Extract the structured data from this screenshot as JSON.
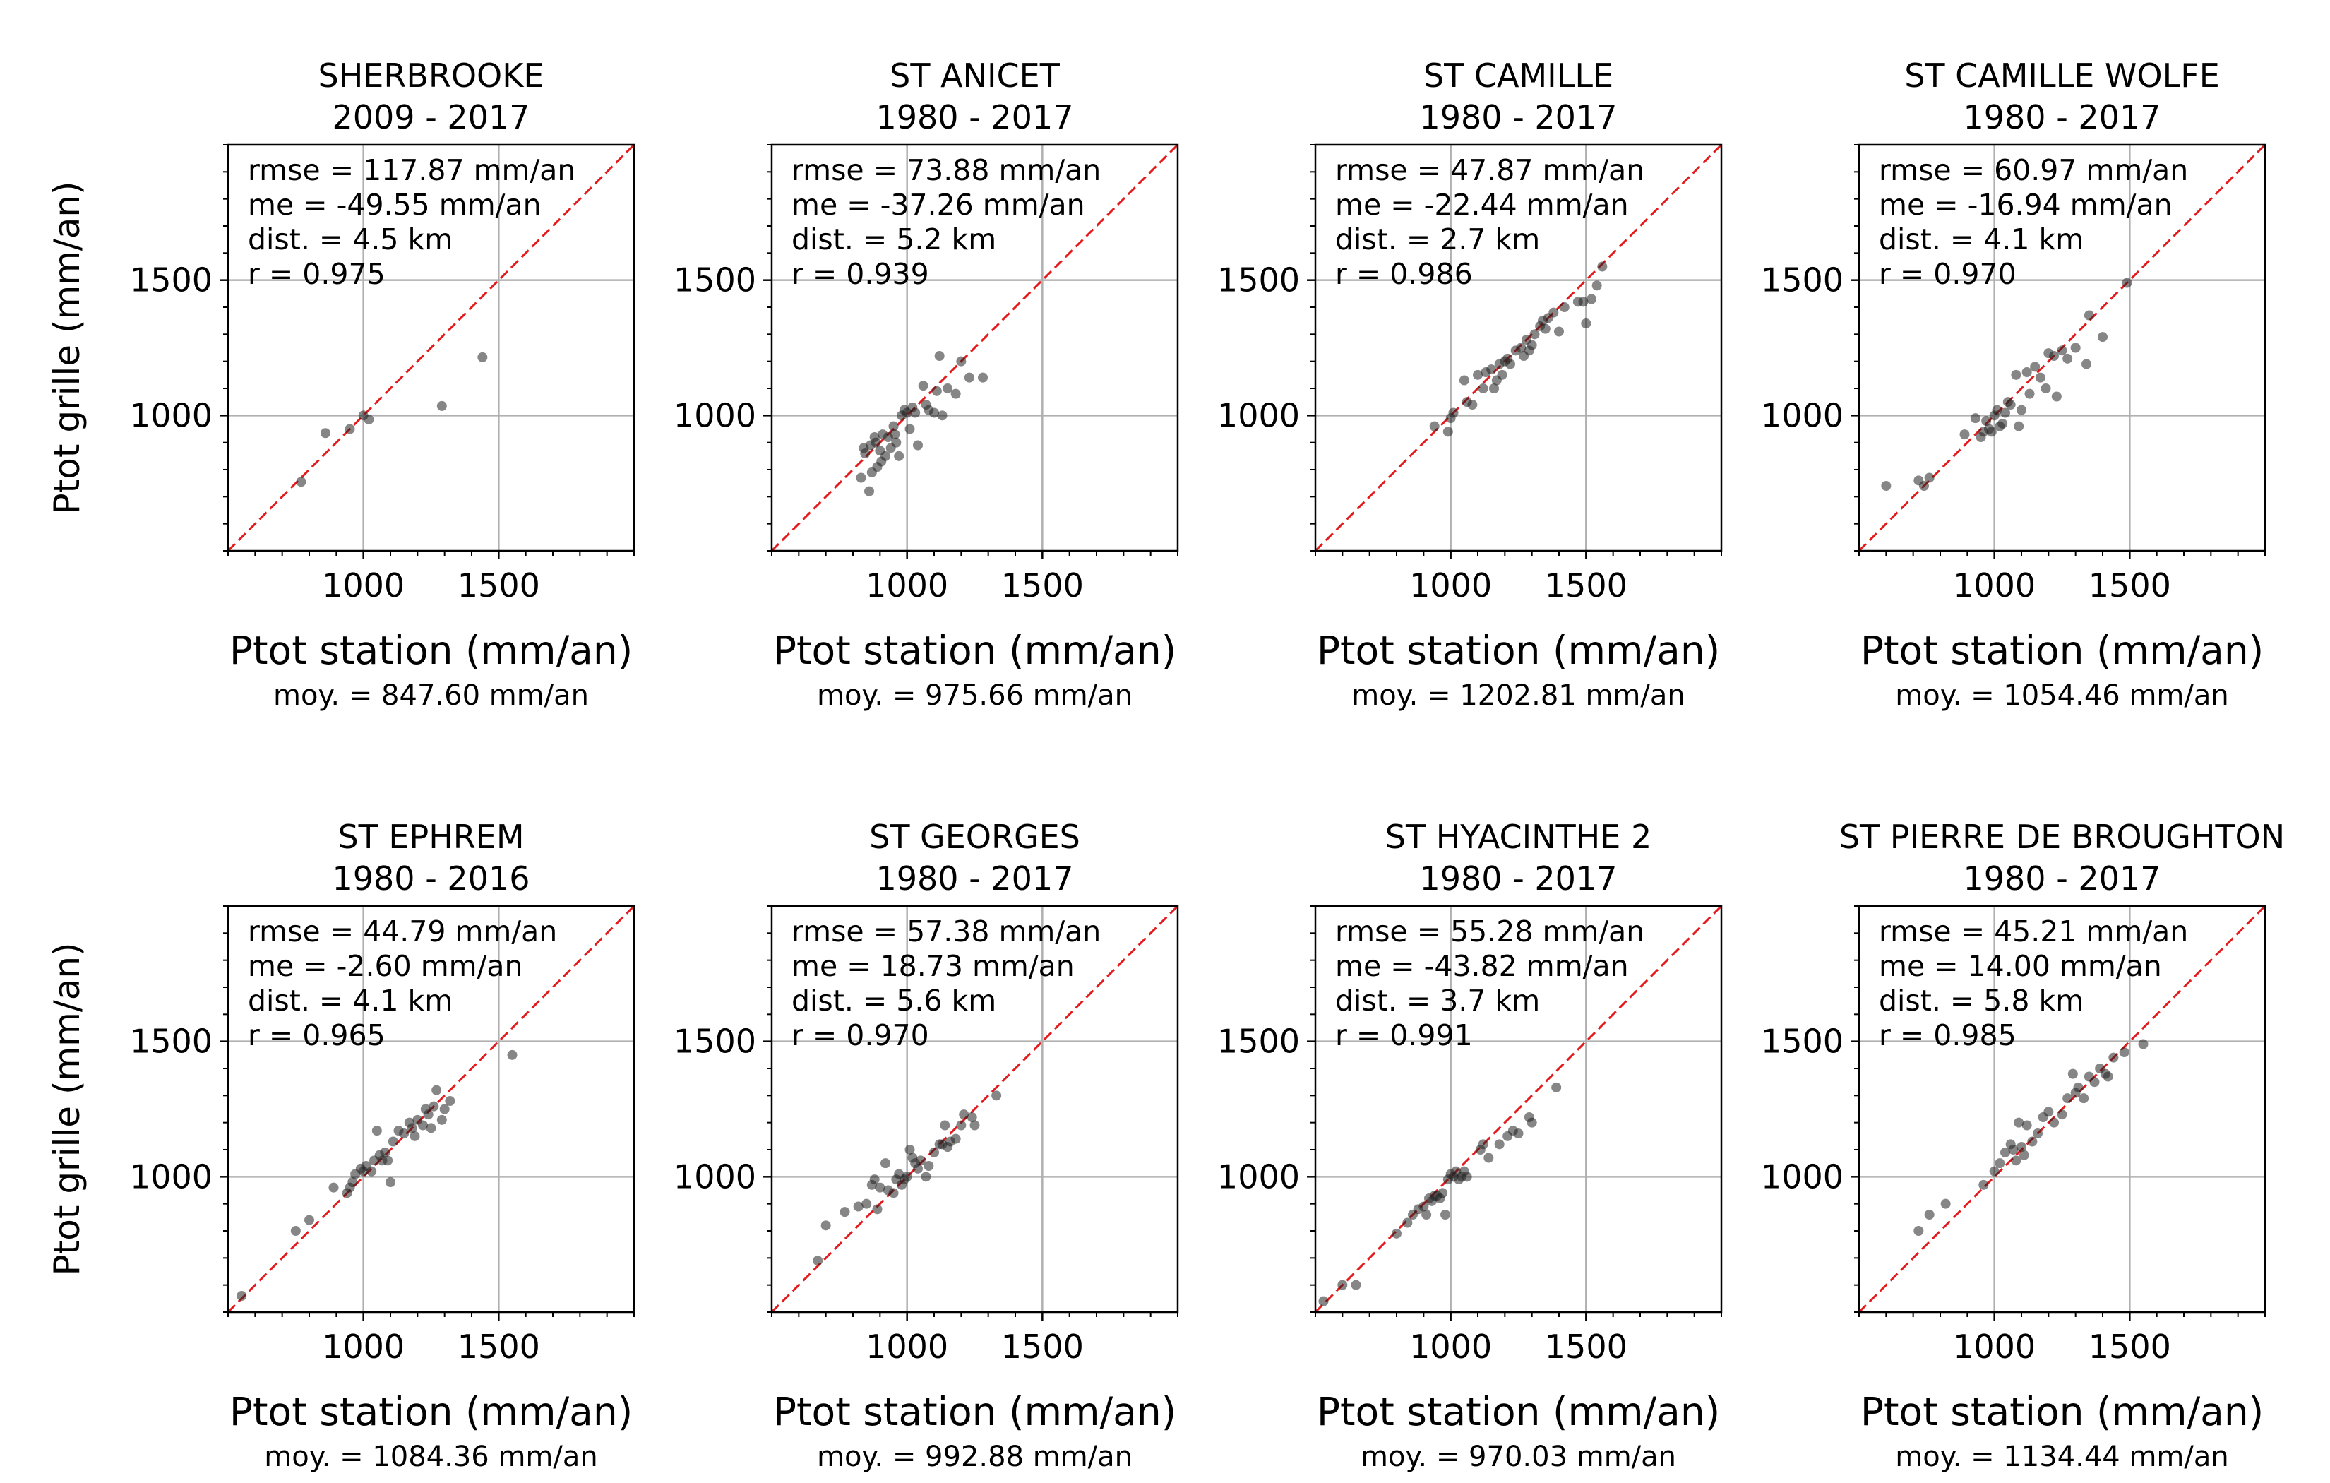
{
  "figure": {
    "ylabel": "Ptot grille (mm/an)",
    "xlabel": "Ptot station (mm/an)"
  },
  "chart_data": [
    {
      "type": "scatter",
      "title": "SHERBROOKE",
      "subtitle": "2009 - 2017",
      "xlabel": "Ptot station (mm/an)",
      "ylabel": "Ptot grille (mm/an)",
      "xlim": [
        500,
        2000
      ],
      "ylim": [
        500,
        2000
      ],
      "xticks": [
        1000,
        1500
      ],
      "yticks": [
        1000,
        1500
      ],
      "grid": true,
      "stats": [
        "rmse = 117.87 mm/an",
        "me = -49.55 mm/an",
        "dist. = 4.5 km",
        "r = 0.975"
      ],
      "mean_text": "moy. = 847.60 mm/an",
      "x": [
        1440,
        1290,
        1020,
        1000,
        950,
        860,
        770
      ],
      "y": [
        1215,
        1035,
        985,
        1000,
        950,
        935,
        755
      ]
    },
    {
      "type": "scatter",
      "title": "ST ANICET",
      "subtitle": "1980 - 2017",
      "xlabel": "Ptot station (mm/an)",
      "ylabel": "Ptot grille (mm/an)",
      "xlim": [
        500,
        2000
      ],
      "ylim": [
        500,
        2000
      ],
      "xticks": [
        1000,
        1500
      ],
      "yticks": [
        1000,
        1500
      ],
      "grid": true,
      "stats": [
        "rmse = 73.88 mm/an",
        "me = -37.26 mm/an",
        "dist. = 5.2 km",
        "r = 0.939"
      ],
      "mean_text": "moy. = 975.66 mm/an",
      "x": [
        830,
        840,
        845,
        860,
        865,
        870,
        880,
        885,
        890,
        900,
        905,
        910,
        920,
        930,
        940,
        950,
        955,
        960,
        970,
        980,
        990,
        1000,
        1010,
        1020,
        1030,
        1040,
        1060,
        1070,
        1080,
        1100,
        1110,
        1120,
        1130,
        1150,
        1180,
        1200,
        1230,
        1280
      ],
      "y": [
        770,
        880,
        860,
        720,
        890,
        790,
        920,
        900,
        810,
        870,
        830,
        930,
        850,
        920,
        880,
        960,
        930,
        900,
        850,
        1000,
        1020,
        1010,
        950,
        1030,
        1010,
        890,
        1110,
        1040,
        1020,
        1010,
        1090,
        1220,
        1000,
        1100,
        1080,
        1200,
        1140,
        1140
      ]
    },
    {
      "type": "scatter",
      "title": "ST CAMILLE",
      "subtitle": "1980 - 2017",
      "xlabel": "Ptot station (mm/an)",
      "ylabel": "Ptot grille (mm/an)",
      "xlim": [
        500,
        2000
      ],
      "ylim": [
        500,
        2000
      ],
      "xticks": [
        1000,
        1500
      ],
      "yticks": [
        1000,
        1500
      ],
      "grid": true,
      "stats": [
        "rmse = 47.87 mm/an",
        "me = -22.44 mm/an",
        "dist. = 2.7 km",
        "r = 0.986"
      ],
      "mean_text": "moy. = 1202.81 mm/an",
      "x": [
        940,
        990,
        1000,
        1010,
        1050,
        1060,
        1080,
        1100,
        1120,
        1130,
        1150,
        1160,
        1170,
        1180,
        1190,
        1200,
        1210,
        1220,
        1240,
        1260,
        1270,
        1280,
        1290,
        1300,
        1310,
        1330,
        1340,
        1350,
        1360,
        1380,
        1400,
        1420,
        1470,
        1490,
        1500,
        1520,
        1540,
        1560
      ],
      "y": [
        960,
        940,
        990,
        1010,
        1130,
        1050,
        1040,
        1150,
        1100,
        1160,
        1170,
        1100,
        1130,
        1190,
        1150,
        1200,
        1210,
        1190,
        1240,
        1250,
        1220,
        1280,
        1240,
        1260,
        1300,
        1330,
        1350,
        1320,
        1360,
        1380,
        1310,
        1400,
        1420,
        1420,
        1340,
        1430,
        1480,
        1550
      ]
    },
    {
      "type": "scatter",
      "title": "ST CAMILLE WOLFE",
      "subtitle": "1980 - 2017",
      "xlabel": "Ptot station (mm/an)",
      "ylabel": "Ptot grille (mm/an)",
      "xlim": [
        500,
        2000
      ],
      "ylim": [
        500,
        2000
      ],
      "xticks": [
        1000,
        1500
      ],
      "yticks": [
        1000,
        1500
      ],
      "grid": true,
      "stats": [
        "rmse = 60.97 mm/an",
        "me = -16.94 mm/an",
        "dist. = 4.1 km",
        "r = 0.970"
      ],
      "mean_text": "moy. = 1054.46 mm/an",
      "x": [
        600,
        720,
        740,
        760,
        890,
        930,
        950,
        960,
        970,
        980,
        990,
        1000,
        1010,
        1020,
        1030,
        1040,
        1050,
        1060,
        1080,
        1090,
        1100,
        1120,
        1130,
        1150,
        1170,
        1190,
        1200,
        1220,
        1230,
        1250,
        1270,
        1300,
        1340,
        1350,
        1400,
        1490
      ],
      "y": [
        740,
        760,
        740,
        770,
        930,
        990,
        920,
        940,
        980,
        950,
        940,
        1000,
        1020,
        960,
        970,
        1010,
        1050,
        1040,
        1150,
        960,
        1020,
        1160,
        1080,
        1180,
        1140,
        1100,
        1230,
        1220,
        1070,
        1240,
        1210,
        1250,
        1190,
        1370,
        1290,
        1490
      ]
    },
    {
      "type": "scatter",
      "title": "ST EPHREM",
      "subtitle": "1980 - 2016",
      "xlabel": "Ptot station (mm/an)",
      "ylabel": "Ptot grille (mm/an)",
      "xlim": [
        500,
        2000
      ],
      "ylim": [
        500,
        2000
      ],
      "xticks": [
        1000,
        1500
      ],
      "yticks": [
        1000,
        1500
      ],
      "grid": true,
      "stats": [
        "rmse = 44.79 mm/an",
        "me = -2.60 mm/an",
        "dist. = 4.1 km",
        "r = 0.965"
      ],
      "mean_text": "moy. = 1084.36 mm/an",
      "x": [
        550,
        750,
        800,
        890,
        940,
        950,
        960,
        970,
        990,
        1000,
        1010,
        1030,
        1040,
        1050,
        1060,
        1070,
        1080,
        1090,
        1100,
        1110,
        1130,
        1150,
        1170,
        1180,
        1190,
        1200,
        1220,
        1230,
        1240,
        1250,
        1260,
        1270,
        1290,
        1300,
        1320,
        1550
      ],
      "y": [
        560,
        800,
        840,
        960,
        940,
        960,
        980,
        1010,
        1030,
        1020,
        1040,
        1020,
        1060,
        1170,
        1080,
        1060,
        1090,
        1060,
        980,
        1130,
        1170,
        1160,
        1200,
        1180,
        1150,
        1210,
        1190,
        1250,
        1230,
        1180,
        1260,
        1320,
        1210,
        1250,
        1280,
        1450
      ]
    },
    {
      "type": "scatter",
      "title": "ST GEORGES",
      "subtitle": "1980 - 2017",
      "xlabel": "Ptot station (mm/an)",
      "ylabel": "Ptot grille (mm/an)",
      "xlim": [
        500,
        2000
      ],
      "ylim": [
        500,
        2000
      ],
      "xticks": [
        1000,
        1500
      ],
      "yticks": [
        1000,
        1500
      ],
      "grid": true,
      "stats": [
        "rmse = 57.38 mm/an",
        "me = 18.73 mm/an",
        "dist. = 5.6 km",
        "r = 0.970"
      ],
      "mean_text": "moy. = 992.88 mm/an",
      "x": [
        670,
        700,
        770,
        820,
        850,
        870,
        880,
        890,
        900,
        920,
        930,
        950,
        960,
        970,
        980,
        990,
        1000,
        1010,
        1020,
        1030,
        1040,
        1050,
        1070,
        1080,
        1100,
        1120,
        1130,
        1140,
        1150,
        1160,
        1180,
        1200,
        1210,
        1240,
        1250,
        1330
      ],
      "y": [
        690,
        820,
        870,
        890,
        900,
        970,
        990,
        880,
        960,
        1050,
        950,
        940,
        990,
        1010,
        970,
        990,
        1000,
        1100,
        1070,
        1050,
        1030,
        1060,
        1000,
        1040,
        1090,
        1120,
        1120,
        1190,
        1110,
        1130,
        1140,
        1190,
        1230,
        1220,
        1190,
        1300
      ]
    },
    {
      "type": "scatter",
      "title": "ST HYACINTHE 2",
      "subtitle": "1980 - 2017",
      "xlabel": "Ptot station (mm/an)",
      "ylabel": "Ptot grille (mm/an)",
      "xlim": [
        500,
        2000
      ],
      "ylim": [
        500,
        2000
      ],
      "xticks": [
        1000,
        1500
      ],
      "yticks": [
        1000,
        1500
      ],
      "grid": true,
      "stats": [
        "rmse = 55.28 mm/an",
        "me = -43.82 mm/an",
        "dist. = 3.7 km",
        "r = 0.991"
      ],
      "mean_text": "moy. = 970.03 mm/an",
      "x": [
        530,
        600,
        650,
        800,
        840,
        860,
        880,
        900,
        910,
        920,
        930,
        940,
        950,
        960,
        970,
        980,
        990,
        1000,
        1010,
        1020,
        1030,
        1040,
        1050,
        1060,
        1110,
        1120,
        1140,
        1180,
        1210,
        1230,
        1250,
        1290,
        1300,
        1390
      ],
      "y": [
        540,
        600,
        600,
        790,
        830,
        860,
        880,
        890,
        860,
        920,
        910,
        930,
        930,
        920,
        940,
        860,
        990,
        1010,
        1000,
        1020,
        990,
        1000,
        1020,
        1000,
        1100,
        1120,
        1070,
        1120,
        1150,
        1170,
        1160,
        1220,
        1200,
        1330
      ]
    },
    {
      "type": "scatter",
      "title": "ST PIERRE DE BROUGHTON",
      "subtitle": "1980 - 2017",
      "xlabel": "Ptot station (mm/an)",
      "ylabel": "Ptot grille (mm/an)",
      "xlim": [
        500,
        2000
      ],
      "ylim": [
        500,
        2000
      ],
      "xticks": [
        1000,
        1500
      ],
      "yticks": [
        1000,
        1500
      ],
      "grid": true,
      "stats": [
        "rmse = 45.21 mm/an",
        "me = 14.00 mm/an",
        "dist. = 5.8 km",
        "r = 0.985"
      ],
      "mean_text": "moy. = 1134.44 mm/an",
      "x": [
        720,
        760,
        820,
        960,
        1000,
        1020,
        1040,
        1060,
        1070,
        1080,
        1090,
        1100,
        1110,
        1120,
        1140,
        1160,
        1180,
        1200,
        1220,
        1250,
        1270,
        1290,
        1300,
        1310,
        1330,
        1350,
        1370,
        1390,
        1410,
        1420,
        1440,
        1480,
        1550
      ],
      "y": [
        800,
        860,
        900,
        970,
        1020,
        1050,
        1090,
        1120,
        1100,
        1060,
        1200,
        1110,
        1080,
        1190,
        1130,
        1160,
        1220,
        1240,
        1200,
        1230,
        1290,
        1380,
        1310,
        1330,
        1290,
        1370,
        1350,
        1400,
        1380,
        1370,
        1440,
        1460,
        1490
      ]
    }
  ]
}
